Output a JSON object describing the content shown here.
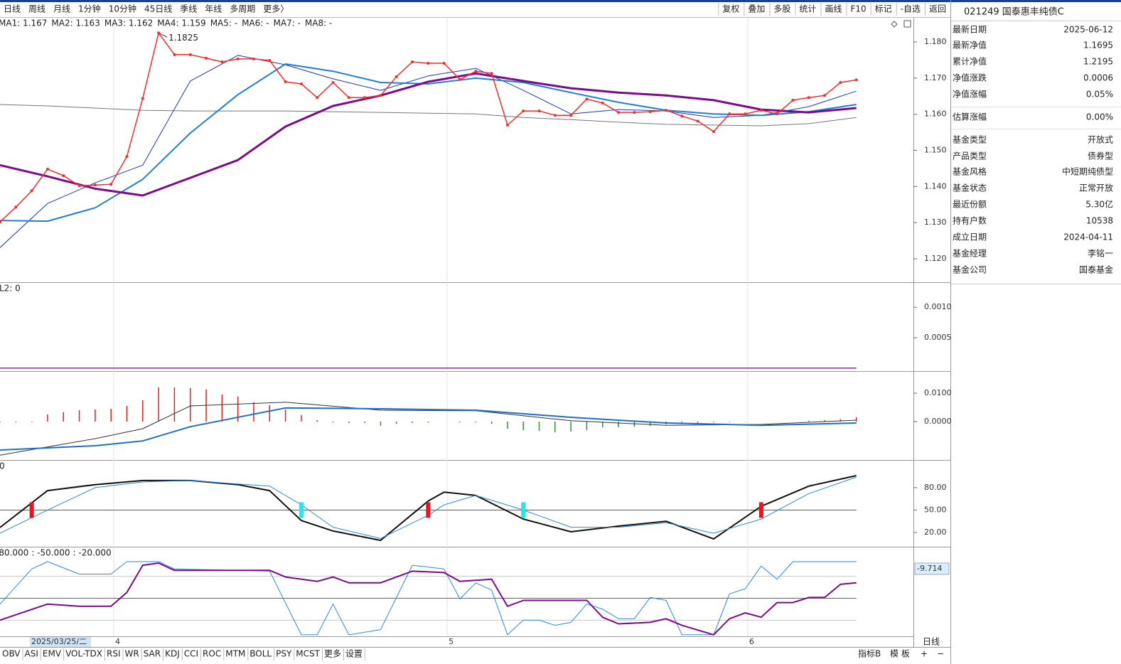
{
  "toolbar": {
    "periods": [
      "日线",
      "周线",
      "月线",
      "1分钟",
      "10分钟",
      "45日线",
      "季线",
      "年线",
      "多周期",
      "更多〉"
    ],
    "buttons": [
      "复权",
      "叠加",
      "多股",
      "统计",
      "画线",
      "F10",
      "标记",
      "-自选",
      "返回"
    ]
  },
  "info": {
    "title": "021249 国泰惠丰纯债C",
    "rows": [
      {
        "key": "最新日期",
        "value": "2025-06-12"
      },
      {
        "key": "最新净值",
        "value": "1.1695",
        "color": "#e8141e"
      },
      {
        "key": "累计净值",
        "value": "1.2195"
      },
      {
        "key": "净值涨跌",
        "value": "0.0006",
        "color": "#e8141e"
      },
      {
        "key": "净值涨幅",
        "value": "0.05%",
        "color": "#e8141e"
      },
      {
        "key": "估算涨幅",
        "value": "0.00%"
      },
      {
        "key": "基金类型",
        "value": "开放式"
      },
      {
        "key": "产品类型",
        "value": "债券型"
      },
      {
        "key": "基金风格",
        "value": "中短期纯债型"
      },
      {
        "key": "基金状态",
        "value": "正常开放"
      },
      {
        "key": "最近份额",
        "value": "5.30亿"
      },
      {
        "key": "持有户数",
        "value": "10538"
      },
      {
        "key": "成立日期",
        "value": "2024-04-11"
      },
      {
        "key": "基金经理",
        "value": "李铭一"
      },
      {
        "key": "基金公司",
        "value": "国泰基金"
      }
    ]
  },
  "bottom": {
    "tabs": [
      "OBV",
      "ASI",
      "EMV",
      "VOL-TDX",
      "RSI",
      "WR",
      "SAR",
      "KDJ",
      "CCI",
      "ROC",
      "MTM",
      "BOLL",
      "PSY",
      "MCST",
      "更多",
      "设置"
    ],
    "right": [
      "指标B",
      "模 板",
      "+",
      "−"
    ],
    "period": "日线"
  },
  "chart_data": [
    {
      "type": "line",
      "xlim": [
        0,
        57.6
      ],
      "ylim": [
        1.1135,
        1.1867
      ],
      "yticks": [
        {
          "value": 1.18,
          "label": "1.180"
        },
        {
          "value": 1.17,
          "label": "1.170"
        },
        {
          "value": 1.16,
          "label": "1.160"
        },
        {
          "value": 1.15,
          "label": "1.150"
        },
        {
          "value": 1.14,
          "label": "1.140"
        },
        {
          "value": 1.13,
          "label": "1.130"
        },
        {
          "value": 1.12,
          "label": "1.120"
        }
      ],
      "legend": [
        {
          "text": "MA1: 1.167",
          "color": "#1b34c8"
        },
        {
          "text": "MA2: 1.163",
          "color": "#1e7fd8"
        },
        {
          "text": "MA3: 1.162",
          "color": "#8b008b"
        },
        {
          "text": "MA4: 1.159",
          "color": "#666666"
        },
        {
          "text": "MA5: -",
          "color": "#00a000"
        },
        {
          "text": "MA6: -",
          "color": "#22d3e0"
        },
        {
          "text": "MA7: -",
          "color": "#444444"
        },
        {
          "text": "MA8: -",
          "color": "#1e7fd8"
        }
      ],
      "max_label": "1.1825",
      "series": [
        {
          "color": "#777777",
          "width": 1,
          "x": [
            0,
            3,
            6,
            9,
            12,
            15,
            18,
            21,
            24,
            27,
            30,
            33,
            36,
            39,
            42,
            45,
            48,
            51,
            54
          ],
          "values": [
            1.1627,
            1.1623,
            1.1617,
            1.1611,
            1.1609,
            1.1609,
            1.1609,
            1.1607,
            1.1605,
            1.1603,
            1.1601,
            1.1591,
            1.1585,
            1.1578,
            1.1572,
            1.157,
            1.1568,
            1.1574,
            1.1591
          ]
        },
        {
          "color": "#1b34c8",
          "width": 1,
          "x": [
            0,
            3,
            6,
            9,
            12,
            15,
            18,
            21,
            24,
            27,
            30,
            33,
            36,
            39,
            42,
            45,
            48,
            51,
            54
          ],
          "values": [
            1.1231,
            1.1353,
            1.141,
            1.1459,
            1.1692,
            1.1763,
            1.1737,
            1.1698,
            1.1666,
            1.1706,
            1.1727,
            1.1666,
            1.1601,
            1.1613,
            1.1609,
            1.1591,
            1.1597,
            1.1621,
            1.1664
          ]
        },
        {
          "color": "#1e7fd8",
          "width": 2,
          "x": [
            0,
            3,
            6,
            9,
            12,
            15,
            18,
            21,
            24,
            27,
            30,
            33,
            36,
            39,
            42,
            45,
            48,
            51,
            54
          ],
          "values": [
            1.1306,
            1.1304,
            1.1341,
            1.142,
            1.1548,
            1.1654,
            1.1739,
            1.1719,
            1.1688,
            1.1684,
            1.17,
            1.1688,
            1.166,
            1.1633,
            1.1611,
            1.1601,
            1.1597,
            1.1607,
            1.1627
          ]
        },
        {
          "color": "#7d0a8a",
          "width": 3,
          "x": [
            0,
            3,
            6,
            9,
            12,
            15,
            18,
            21,
            24,
            27,
            30,
            33,
            36,
            39,
            42,
            45,
            48,
            51,
            54
          ],
          "values": [
            1.1459,
            1.1428,
            1.1394,
            1.1375,
            1.1424,
            1.1473,
            1.1566,
            1.1623,
            1.1652,
            1.169,
            1.1713,
            1.1692,
            1.1672,
            1.166,
            1.1652,
            1.1639,
            1.1613,
            1.1605,
            1.1617
          ]
        },
        {
          "color": "#ff2a2a",
          "width": 1.5,
          "markers": true,
          "x": [
            0,
            1,
            2,
            3,
            4,
            5,
            6,
            7,
            8,
            9,
            10,
            11,
            12,
            13,
            14,
            15,
            16,
            17,
            18,
            19,
            20,
            21,
            22,
            23,
            24,
            25,
            26,
            27,
            28,
            29,
            30,
            31,
            32,
            33,
            34,
            35,
            36,
            37,
            38,
            39,
            40,
            41,
            42,
            43,
            44,
            45,
            46,
            47,
            48,
            49,
            50,
            51,
            52,
            53,
            54
          ],
          "values": [
            1.1302,
            1.1343,
            1.1388,
            1.1448,
            1.143,
            1.1402,
            1.1404,
            1.1406,
            1.1483,
            1.1644,
            1.1825,
            1.1765,
            1.1765,
            1.1755,
            1.1745,
            1.1753,
            1.1753,
            1.1749,
            1.169,
            1.1684,
            1.1646,
            1.1688,
            1.1646,
            1.1646,
            1.1652,
            1.1704,
            1.1745,
            1.1741,
            1.1741,
            1.1696,
            1.1719,
            1.1713,
            1.157,
            1.1609,
            1.1609,
            1.1597,
            1.1597,
            1.1642,
            1.1631,
            1.1605,
            1.1605,
            1.1607,
            1.1611,
            1.1595,
            1.1581,
            1.1552,
            1.1601,
            1.1601,
            1.1611,
            1.1601,
            1.1639,
            1.1646,
            1.1652,
            1.1688,
            1.1695
          ]
        }
      ]
    },
    {
      "type": "line",
      "label": "L2: 0",
      "xlim": [
        0,
        57.6
      ],
      "ylim": [
        -5e-05,
        0.0014
      ],
      "yticks": [
        {
          "value": 0.001,
          "label": "0.0010"
        },
        {
          "value": 0.0005,
          "label": "0.0005"
        }
      ],
      "series": [
        {
          "color": "#a020a0",
          "width": 1.5,
          "x": [
            0,
            54
          ],
          "values": [
            0,
            0
          ]
        }
      ]
    },
    {
      "type": "bar",
      "xlim": [
        0,
        57.6
      ],
      "ylim": [
        -0.0135,
        0.0175
      ],
      "up_color": "#e02020",
      "down_color": "#2a9a2a",
      "yticks": [
        {
          "value": 0.01,
          "label": "0.0100"
        },
        {
          "value": 0,
          "label": "0.0000"
        }
      ],
      "values": [
        -0.0003,
        -0.0003,
        -0.0002,
        0.0025,
        0.0033,
        0.004,
        0.0043,
        0.0045,
        0.0055,
        0.0075,
        0.012,
        0.012,
        0.0118,
        0.0113,
        0.0095,
        0.0088,
        0.0068,
        0.0058,
        0.0043,
        0.0023,
        0.0005,
        -0.0003,
        -0.0005,
        -0.0005,
        -0.0015,
        -0.0008,
        -0.0005,
        -0.0004,
        0,
        -0.0003,
        -0.0003,
        -0.0008,
        -0.0025,
        -0.003,
        -0.0033,
        -0.0038,
        -0.0035,
        -0.003,
        -0.002,
        -0.002,
        -0.0018,
        -0.0015,
        -0.001,
        -0.0008,
        -0.0005,
        -0.0003,
        -0.0002,
        -0.0001,
        0,
        0,
        0,
        0.0003,
        0.0005,
        0.0008,
        0.0015
      ],
      "series": [
        {
          "color": "#333333",
          "width": 1,
          "x": [
            0,
            6,
            9,
            12,
            18,
            24,
            30,
            36,
            42,
            48,
            54
          ],
          "values": [
            -0.0118,
            -0.006,
            -0.0025,
            0.0055,
            0.0068,
            0.004,
            0.0038,
            0.0003,
            -0.0013,
            -0.001,
            0.0005
          ]
        },
        {
          "color": "#1e6fd0",
          "width": 2,
          "x": [
            0,
            6,
            9,
            12,
            18,
            24,
            30,
            36,
            42,
            48,
            54
          ],
          "values": [
            -0.01,
            -0.0085,
            -0.0068,
            -0.0018,
            0.0048,
            0.0045,
            0.004,
            0.0015,
            -0.0005,
            -0.0013,
            -0.0005
          ]
        }
      ]
    },
    {
      "type": "line",
      "label": "0",
      "xlim": [
        0,
        57.6
      ],
      "ylim": [
        1,
        116
      ],
      "level": 50,
      "level_color": "#1a8a1a",
      "yticks": [
        {
          "value": 80,
          "label": "80.00"
        },
        {
          "value": 50,
          "label": "50.00"
        },
        {
          "value": 20,
          "label": "20.00"
        }
      ],
      "buy_signals": [
        2,
        27,
        48
      ],
      "buy_color": "#e8141e",
      "sell_signals": [
        19,
        33
      ],
      "sell_color": "#22e6f0",
      "series": [
        {
          "color": "#111111",
          "width": 2,
          "x": [
            0,
            3,
            6,
            9,
            12,
            15,
            17,
            19,
            21,
            24,
            27,
            28,
            30,
            33,
            36,
            39,
            42,
            45,
            48,
            51,
            54
          ],
          "values": [
            26.7,
            76,
            84,
            89.5,
            89.5,
            84,
            76,
            36,
            22,
            9.5,
            62,
            74,
            69.5,
            38,
            21,
            28.6,
            35,
            11.4,
            55,
            82,
            96
          ]
        },
        {
          "color": "#2a8ae0",
          "width": 1,
          "x": [
            0,
            3,
            6,
            9,
            12,
            15,
            17,
            19,
            21,
            24,
            27,
            28,
            30,
            33,
            36,
            39,
            42,
            45,
            48,
            51,
            54
          ],
          "values": [
            19,
            50,
            80,
            87.6,
            89.5,
            84.8,
            82,
            57,
            27,
            12,
            43,
            57,
            69.5,
            50,
            27,
            27,
            33,
            19,
            38,
            72,
            94
          ]
        }
      ]
    },
    {
      "type": "line",
      "xlim": [
        0,
        57.6
      ],
      "ylim": [
        -102,
        19.4
      ],
      "labels": [
        {
          "text": "-80.000",
          "color": "#888888"
        },
        {
          "text": ": -50.000",
          "color": "#e8141e"
        },
        {
          "text": ": -20.000",
          "color": "#888888"
        }
      ],
      "levels": [
        {
          "value": -20,
          "color": "#c8c8c8"
        },
        {
          "value": -50,
          "color": "#e03030"
        },
        {
          "value": -80,
          "color": "#c8c8c8"
        }
      ],
      "current": -9.714,
      "current_label": "-9.714",
      "cursor_label": "2025/03/25/二",
      "xticks": [
        {
          "value": 7.17,
          "label": "4"
        },
        {
          "value": 28.2,
          "label": "5"
        },
        {
          "value": 47.15,
          "label": "6"
        }
      ],
      "series": [
        {
          "color": "#2a8ae0",
          "width": 1,
          "x": [
            0,
            2,
            3,
            5,
            7,
            8,
            10,
            11,
            17,
            19,
            20,
            21,
            22,
            24,
            26,
            28,
            29,
            30,
            31,
            32,
            33,
            34,
            35,
            36,
            37,
            38,
            39,
            40,
            41,
            42,
            43,
            45,
            46,
            47,
            48,
            49,
            50,
            54
          ],
          "values": [
            -58,
            -10,
            0,
            -17,
            -17,
            0,
            0,
            -10,
            -13,
            -100,
            -100,
            -58,
            -100,
            -93,
            -5,
            -10,
            -51,
            -29,
            -39,
            -100,
            -80,
            -80,
            -87,
            -83,
            -58,
            -65,
            -78,
            -78,
            -49,
            -53,
            -100,
            -100,
            -44,
            -37,
            -6,
            -24,
            0,
            0
          ]
        },
        {
          "color": "#7d0a8a",
          "width": 2,
          "x": [
            0,
            3,
            5,
            7,
            8,
            9,
            10,
            11,
            17,
            18,
            20,
            21,
            22,
            24,
            26,
            28,
            29,
            31,
            32,
            33,
            35,
            37,
            38,
            39,
            41,
            42,
            43,
            45,
            46,
            47,
            48,
            49,
            50,
            51,
            52,
            53,
            54
          ],
          "values": [
            -80,
            -58,
            -61,
            -61,
            -42,
            -5,
            -2,
            -12,
            -12,
            -21,
            -27,
            -21,
            -29,
            -29,
            -13,
            -15,
            -27,
            -24,
            -61,
            -53,
            -53,
            -53,
            -76,
            -85,
            -83,
            -78,
            -87,
            -100,
            -78,
            -70,
            -76,
            -56,
            -56,
            -49,
            -49,
            -31,
            -29
          ]
        }
      ]
    }
  ]
}
